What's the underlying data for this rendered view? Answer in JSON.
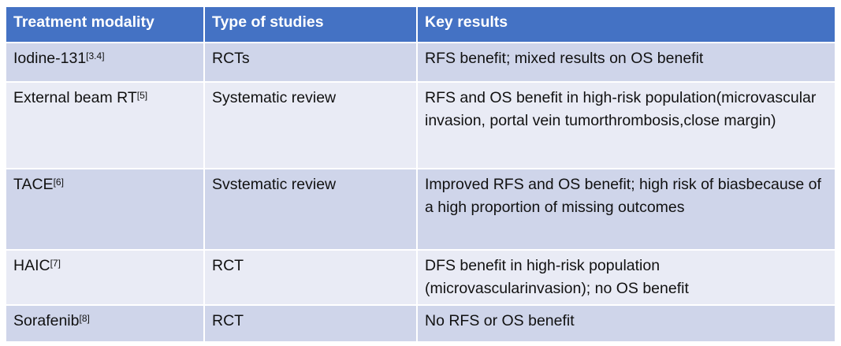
{
  "colors": {
    "header": "#4472C4",
    "row_odd": "#CFD5EA",
    "row_even": "#E9EBF5"
  },
  "table": {
    "headers": [
      "Treatment modality",
      "Type of studies",
      "Key results"
    ],
    "rows": [
      {
        "modality": "Iodine-131",
        "ref": "[3.4]",
        "study": "RCTs",
        "result": "RFS benefit; mixed results on OS benefit"
      },
      {
        "modality": "External beam RT",
        "ref": "[5]",
        "study": "Systematic review",
        "result": "RFS and OS benefit in high-risk population(microvascular invasion, portal vein tumorthrombosis,close margin)"
      },
      {
        "modality": "TACE",
        "ref": "[6]",
        "study": "Svstematic review",
        "result": "Improved RFS and OS benefit; high risk of biasbecause of a high proportion of missing outcomes"
      },
      {
        "modality": "HAIC",
        "ref": "[7]",
        "study": "RCT",
        "result": "DFS benefit in high-risk population (microvascularinvasion); no OS benefit"
      },
      {
        "modality": "Sorafenib",
        "ref": "[8]",
        "study": "RCT",
        "result": "No RFS or OS benefit"
      }
    ]
  }
}
